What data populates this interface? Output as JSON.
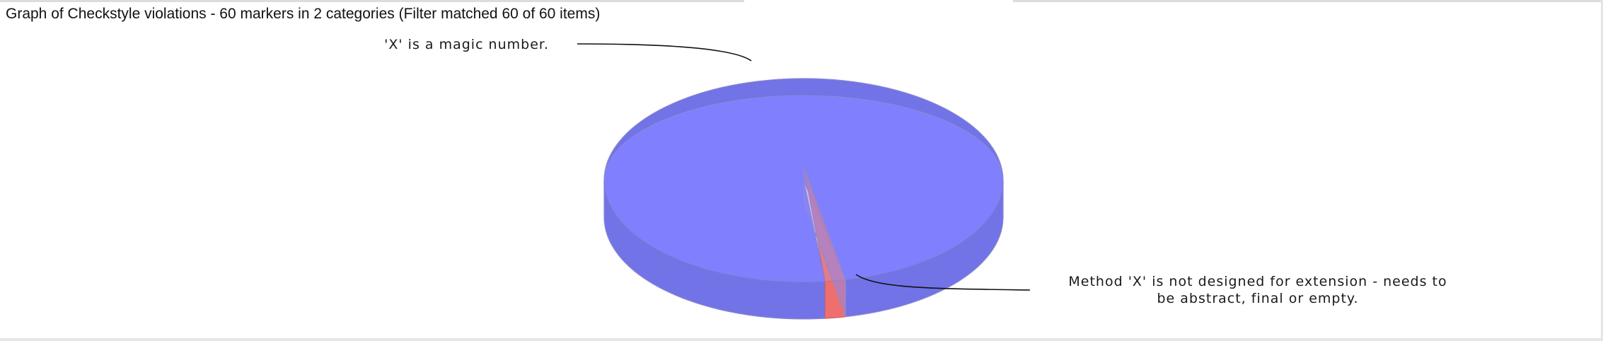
{
  "window": {
    "title": "Graph of Checkstyle violations - 60 markers in 2 categories (Filter matched 60 of 60 items)"
  },
  "chart_data": {
    "type": "pie",
    "style": "3d",
    "title": "Graph of Checkstyle violations - 60 markers in 2 categories (Filter matched 60 of 60 items)",
    "total": 60,
    "slices": [
      {
        "label_lines": [
          "'X' is a magic number."
        ],
        "value": 59,
        "color": "#8080ff",
        "side_color": "#7173e6",
        "label_side": "left"
      },
      {
        "label_lines": [
          "Method 'X' is not designed for extension - needs to",
          "be abstract, final or empty."
        ],
        "value": 1,
        "color": "#e07585",
        "side_color": "#ef6f6f",
        "label_side": "right"
      }
    ]
  }
}
